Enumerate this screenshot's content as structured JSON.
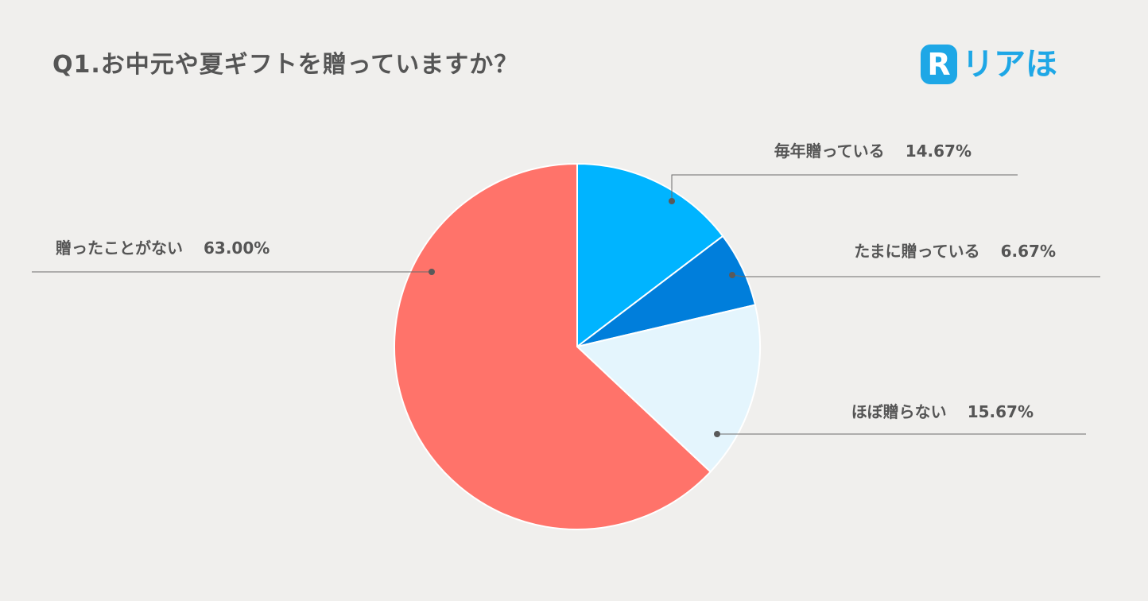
{
  "title": "Q1.お中元や夏ギフトを贈っていますか？",
  "logo": {
    "mark": "R",
    "text": "リアほ"
  },
  "chart_data": {
    "type": "pie",
    "title": "Q1.お中元や夏ギフトを贈っていますか？",
    "start_angle_deg": 0,
    "direction": "clockwise",
    "slices": [
      {
        "label": "毎年贈っている",
        "value": 14.67,
        "display": "14.67%",
        "color": "#00b4ff"
      },
      {
        "label": "たまに贈っている",
        "value": 6.67,
        "display": "6.67%",
        "color": "#007edb"
      },
      {
        "label": "ほぼ贈らない",
        "value": 15.67,
        "display": "15.67%",
        "color": "#e4f5fd"
      },
      {
        "label": "贈ったことがない",
        "value": 63.0,
        "display": "63.00%",
        "color": "#ff736a"
      }
    ]
  }
}
